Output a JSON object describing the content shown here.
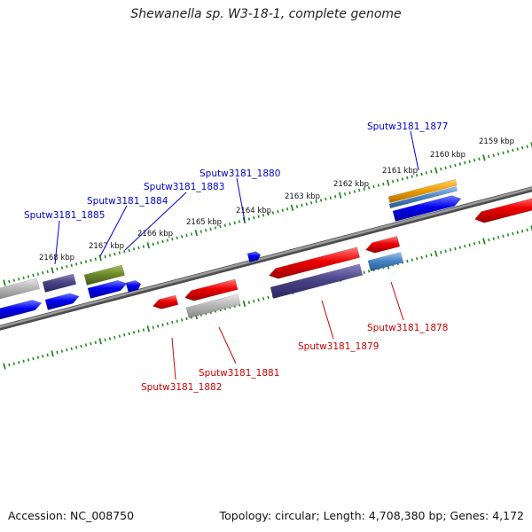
{
  "header": {
    "title": "Shewanella sp. W3-18-1, complete genome"
  },
  "footer": {
    "accession": "Accession: NC_008750",
    "summary": "Topology: circular; Length: 4,708,380 bp; Genes: 4,172"
  },
  "colors": {
    "forward_label": "#0000cc",
    "reverse_label": "#cc0000",
    "tick": "#228B22",
    "backbone": "#808080",
    "blue": "#0000ee",
    "red": "#ee0000",
    "slate": "#4a4488",
    "olive": "#6e8b2a",
    "grey": "#b8b8b8",
    "steel": "#4a86c8",
    "orange": "#f0a000"
  },
  "scale": {
    "labels": [
      "2168 kbp",
      "2167 kbp",
      "2166 kbp",
      "2165 kbp",
      "2164 kbp",
      "2163 kbp",
      "2162 kbp",
      "2161 kbp",
      "2160 kbp",
      "2159 kbp"
    ]
  },
  "gene_labels": {
    "top": [
      "Sputw3181_1885",
      "Sputw3181_1884",
      "Sputw3181_1883",
      "Sputw3181_1880",
      "Sputw3181_1877"
    ],
    "bottom": [
      "Sputw3181_1882",
      "Sputw3181_1881",
      "Sputw3181_1879",
      "Sputw3181_1878"
    ]
  }
}
